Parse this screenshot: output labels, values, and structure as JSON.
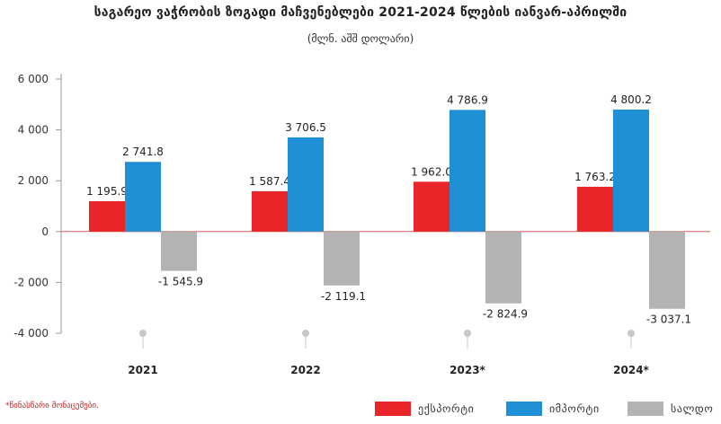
{
  "title": "საგარეო ვაჭრობის ზოგადი მაჩვენებლები 2021-2024 წლების იანვარ-აპრილში",
  "subtitle": "(მლნ. აშშ დოლარი)",
  "footnote": "*წინასწარი მონაცემები.",
  "colors": {
    "export": "#e8262a",
    "import": "#1f8fd6",
    "balance": "#b3b3b3"
  },
  "chart_data": {
    "type": "bar",
    "categories": [
      "2021",
      "2022",
      "2023*",
      "2024*"
    ],
    "series": [
      {
        "name": "ექსპორტი",
        "values": [
          1195.9,
          1587.4,
          1962.0,
          1763.2
        ],
        "labels": [
          "1 195.9",
          "1 587.4",
          "1 962.0",
          "1 763.2"
        ]
      },
      {
        "name": "იმპორტი",
        "values": [
          2741.8,
          3706.5,
          4786.9,
          4800.2
        ],
        "labels": [
          "2 741.8",
          "3 706.5",
          "4 786.9",
          "4 800.2"
        ]
      },
      {
        "name": "სალდო",
        "values": [
          -1545.9,
          -2119.1,
          -2824.9,
          -3037.1
        ],
        "labels": [
          "-1 545.9",
          "-2 119.1",
          "-2 824.9",
          "-3 037.1"
        ]
      }
    ],
    "ylim": [
      -4000,
      6000
    ],
    "yticks": [
      6000,
      4000,
      2000,
      0,
      -2000,
      -4000
    ],
    "ytick_labels": [
      "6 000",
      "4 000",
      "2 000",
      "0",
      "-2 000",
      "-4 000"
    ],
    "grid": false,
    "legend": "bottom-right"
  }
}
